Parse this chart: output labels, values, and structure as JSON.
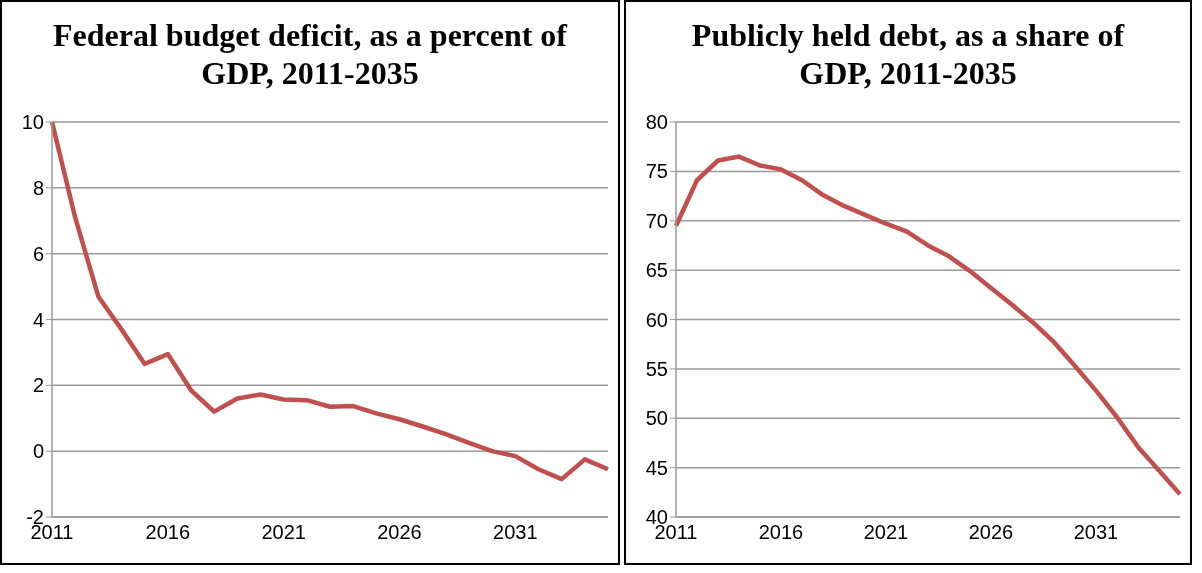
{
  "chart_data": [
    {
      "type": "line",
      "title": "Federal budget deficit, as a percent of GDP, 2011-2035",
      "categories": [
        "2011",
        null,
        null,
        null,
        null,
        "2016",
        null,
        null,
        null,
        null,
        "2021",
        null,
        null,
        null,
        null,
        "2026",
        null,
        null,
        null,
        null,
        "2031",
        null,
        null,
        null,
        null
      ],
      "series": [
        {
          "color": "#c0504d",
          "values": [
            10,
            7.1,
            4.7,
            3.7,
            2.65,
            2.95,
            1.85,
            1.2,
            1.6,
            1.72,
            1.57,
            1.55,
            1.35,
            1.37,
            1.15,
            0.97,
            0.75,
            0.52,
            0.25,
            0.0,
            -0.15,
            -0.55,
            -0.85,
            -0.25,
            -0.55
          ]
        }
      ],
      "ylim": [
        -2,
        10
      ],
      "yticks": [
        -2,
        0,
        2,
        4,
        6,
        8,
        10
      ],
      "grid": "y",
      "legend": false,
      "marker": "none"
    },
    {
      "type": "line",
      "title": "Publicly held debt, as a share of GDP, 2011-2035",
      "categories": [
        "2011",
        null,
        null,
        null,
        null,
        "2016",
        null,
        null,
        null,
        null,
        "2021",
        null,
        null,
        null,
        null,
        "2026",
        null,
        null,
        null,
        null,
        "2031",
        null,
        null,
        null,
        null
      ],
      "series": [
        {
          "color": "#c0504d",
          "values": [
            69.5,
            74.1,
            76.1,
            76.5,
            75.6,
            75.2,
            74.1,
            72.6,
            71.5,
            70.6,
            69.7,
            68.9,
            67.5,
            66.4,
            64.9,
            63.2,
            61.5,
            59.7,
            57.7,
            55.3,
            52.8,
            50.1,
            47.1,
            44.7,
            42.3
          ]
        }
      ],
      "ylim": [
        40,
        80
      ],
      "yticks": [
        40,
        45,
        50,
        55,
        60,
        65,
        70,
        75,
        80
      ],
      "grid": "y",
      "legend": false,
      "marker": "none"
    }
  ]
}
